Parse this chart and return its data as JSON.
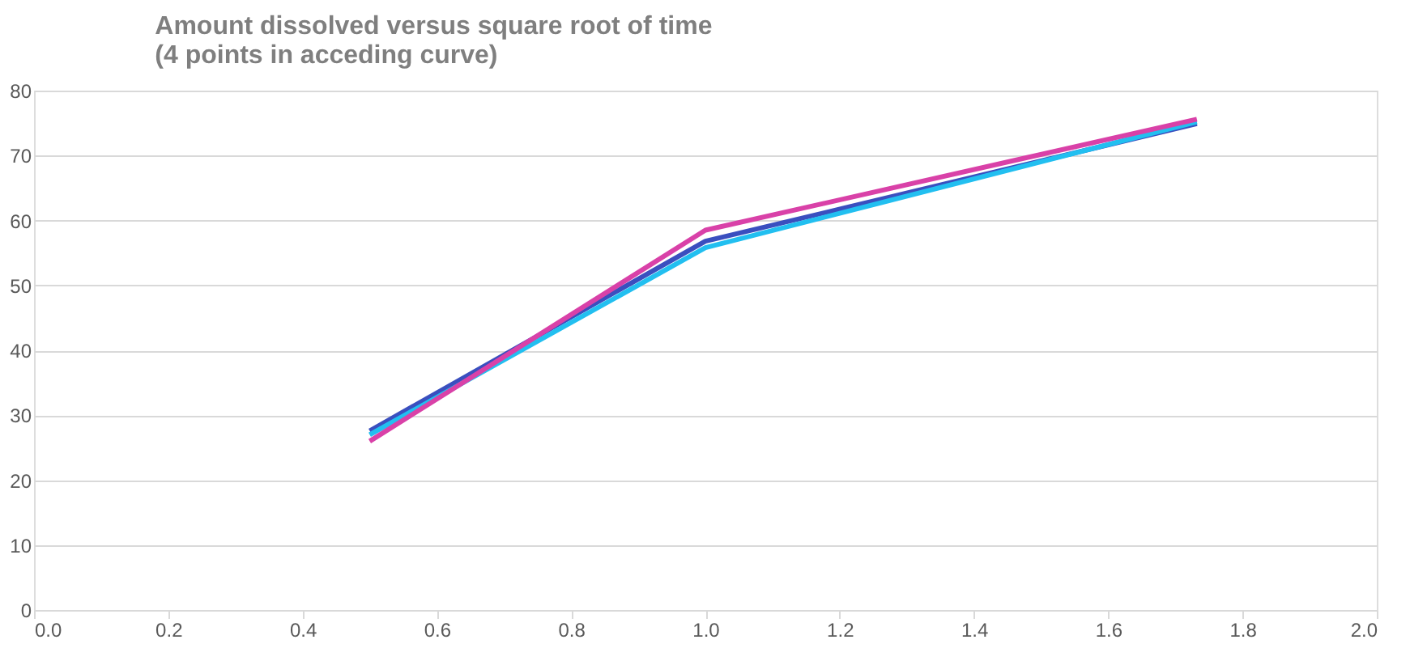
{
  "chart_data": {
    "type": "line",
    "title": [
      "Amount dissolved versus square root of time",
      "(4 points in acceding curve)"
    ],
    "x": [
      0.5,
      1.0,
      1.732
    ],
    "series": [
      {
        "color": "#3a4fbf",
        "values": [
          27.6,
          56.8,
          74.9
        ]
      },
      {
        "color": "#22bff0",
        "values": [
          27.0,
          55.8,
          75.2
        ]
      },
      {
        "color": "#d941a8",
        "values": [
          26.0,
          58.5,
          75.6
        ]
      }
    ],
    "xlim": [
      0.0,
      2.0
    ],
    "xticks": [
      {
        "value": 0,
        "label": "0.0"
      },
      {
        "value": 0.2,
        "label": "0.2"
      },
      {
        "value": 0.4,
        "label": "0.4"
      },
      {
        "value": 0.6,
        "label": "0.6"
      },
      {
        "value": 0.8,
        "label": "0.8"
      },
      {
        "value": 1.0,
        "label": "1.0"
      },
      {
        "value": 1.2,
        "label": "1.2"
      },
      {
        "value": 1.4,
        "label": "1.4"
      },
      {
        "value": 1.6,
        "label": "1.6"
      },
      {
        "value": 1.8,
        "label": "1.8"
      },
      {
        "value": 2.0,
        "label": "2.0"
      }
    ],
    "ylim": [
      0,
      80
    ],
    "yticks": [
      0,
      10,
      20,
      30,
      40,
      50,
      60,
      70,
      80
    ],
    "grid": "y",
    "legend": false,
    "marker": "none",
    "line_style": "solid"
  }
}
